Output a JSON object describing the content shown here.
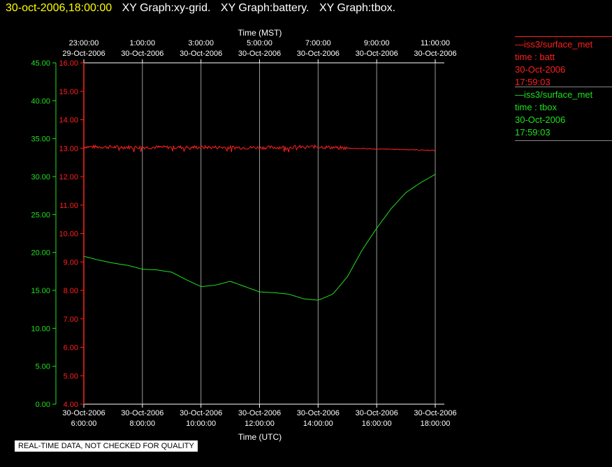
{
  "header": {
    "timestamp": "30-oct-2006,18:00:00",
    "graph_titles": [
      "XY Graph:xy-grid.",
      "XY Graph:battery.",
      "XY Graph:tbox."
    ]
  },
  "legend": [
    {
      "station": "iss3/surface_met",
      "field": "time : batt",
      "date": "30-Oct-2006",
      "time": "17:59:03",
      "color": "#ff2020"
    },
    {
      "station": "iss3/surface_met",
      "field": "time : tbox",
      "date": "30-Oct-2006",
      "time": "17:59:03",
      "color": "#20e020"
    }
  ],
  "footer_note": "REAL-TIME DATA, NOT CHECKED FOR QUALITY",
  "chart_data": {
    "type": "line",
    "x_top_label": "Time (MST)",
    "x_bottom_label": "Time (UTC)",
    "x_range_utc_hours": [
      6,
      18
    ],
    "x_bottom_ticks": [
      {
        "hour": 6,
        "date": "30-Oct-2006",
        "time": "6:00:00"
      },
      {
        "hour": 8,
        "date": "30-Oct-2006",
        "time": "8:00:00"
      },
      {
        "hour": 10,
        "date": "30-Oct-2006",
        "time": "10:00:00"
      },
      {
        "hour": 12,
        "date": "30-Oct-2006",
        "time": "12:00:00"
      },
      {
        "hour": 14,
        "date": "30-Oct-2006",
        "time": "14:00:00"
      },
      {
        "hour": 16,
        "date": "30-Oct-2006",
        "time": "16:00:00"
      },
      {
        "hour": 18,
        "date": "30-Oct-2006",
        "time": "18:00:00"
      }
    ],
    "x_top_ticks": [
      {
        "hour": 6,
        "time": "23:00:00",
        "date": "29-Oct-2006"
      },
      {
        "hour": 8,
        "time": "1:00:00",
        "date": "30-Oct-2006"
      },
      {
        "hour": 10,
        "time": "3:00:00",
        "date": "30-Oct-2006"
      },
      {
        "hour": 12,
        "time": "5:00:00",
        "date": "30-Oct-2006"
      },
      {
        "hour": 14,
        "time": "7:00:00",
        "date": "30-Oct-2006"
      },
      {
        "hour": 16,
        "time": "9:00:00",
        "date": "30-Oct-2006"
      },
      {
        "hour": 18,
        "time": "11:00:00",
        "date": "30-Oct-2006"
      }
    ],
    "y_left_outer": {
      "color": "#20e020",
      "range": [
        0,
        45
      ],
      "ticks": [
        "0.00",
        "5.00",
        "10.00",
        "15.00",
        "20.00",
        "25.00",
        "30.00",
        "35.00",
        "40.00",
        "45.00"
      ]
    },
    "y_left_inner": {
      "color": "#ff2020",
      "range": [
        4,
        16
      ],
      "ticks": [
        "4.00",
        "5.00",
        "6.00",
        "7.00",
        "8.00",
        "9.00",
        "10.00",
        "11.00",
        "12.00",
        "13.00",
        "14.00",
        "15.00",
        "16.00"
      ]
    },
    "grid": "vertical",
    "series": [
      {
        "name": "time : batt",
        "color": "#ff2020",
        "axis": "inner",
        "noise": true,
        "x": [
          6,
          8,
          10,
          12,
          14,
          15,
          16,
          17,
          18
        ],
        "y": [
          13.05,
          13.03,
          13.03,
          13.02,
          13.05,
          13.0,
          12.97,
          12.95,
          12.92
        ]
      },
      {
        "name": "time : tbox",
        "color": "#20e020",
        "axis": "outer",
        "noise": false,
        "x": [
          6,
          6.5,
          7,
          7.5,
          8,
          8.5,
          9,
          9.5,
          10,
          10.5,
          11,
          11.5,
          12,
          12.5,
          13,
          13.5,
          14,
          14.5,
          15,
          15.5,
          16,
          16.5,
          17,
          17.5,
          18
        ],
        "y": [
          19.5,
          19.0,
          18.6,
          18.3,
          17.8,
          17.7,
          17.4,
          16.4,
          15.5,
          15.7,
          16.2,
          15.5,
          14.8,
          14.7,
          14.5,
          13.9,
          13.7,
          14.5,
          16.8,
          20.3,
          23.2,
          25.8,
          27.9,
          29.2,
          30.3
        ]
      }
    ]
  }
}
